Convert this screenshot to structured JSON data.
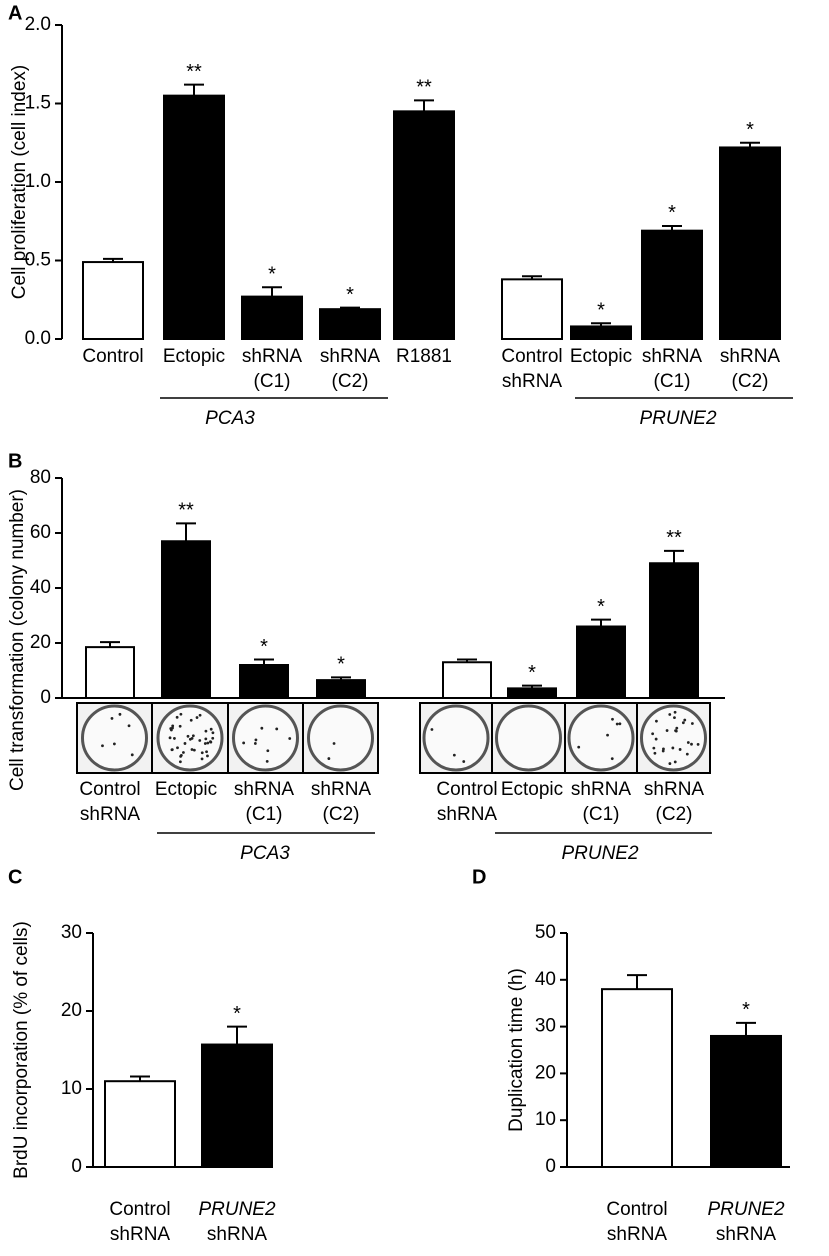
{
  "chart_data": [
    {
      "type": "bar",
      "panel": "A",
      "y_label": "Cell proliferation (cell index)",
      "categories": [
        [
          "Control"
        ],
        [
          "Ectopic"
        ],
        [
          "shRNA",
          "(C1)"
        ],
        [
          "shRNA",
          "(C2)"
        ],
        [
          "R1881"
        ],
        null,
        [
          "Control",
          "shRNA"
        ],
        [
          "Ectopic"
        ],
        [
          "shRNA",
          "(C1)"
        ],
        [
          "shRNA",
          "(C2)"
        ]
      ],
      "values": [
        0.49,
        1.55,
        0.27,
        0.19,
        1.45,
        null,
        0.38,
        0.08,
        0.69,
        1.22
      ],
      "errors": [
        0.02,
        0.07,
        0.06,
        0.01,
        0.07,
        null,
        0.02,
        0.02,
        0.03,
        0.03
      ],
      "colors": [
        "#ffffff",
        "#000000",
        "#000000",
        "#000000",
        "#000000",
        null,
        "#ffffff",
        "#000000",
        "#000000",
        "#000000"
      ],
      "annotations": [
        null,
        "**",
        "*",
        "*",
        "**",
        null,
        null,
        "*",
        "*",
        "*"
      ],
      "groups": [
        "PCA3",
        "PRUNE2"
      ],
      "ylim": [
        0,
        2
      ],
      "yticks": [
        {
          "value": 0,
          "label": "0.0"
        },
        0.5,
        {
          "value": 1,
          "label": "1.0"
        },
        1.5,
        {
          "value": 2,
          "label": "2.0"
        }
      ]
    },
    {
      "type": "bar",
      "panel": "B",
      "y_label": "Cell transformation (colony number)",
      "categories": [
        [
          "Control",
          "shRNA"
        ],
        [
          "Ectopic"
        ],
        [
          "shRNA",
          "(C1)"
        ],
        [
          "shRNA",
          "(C2)"
        ],
        null,
        [
          "Control",
          "shRNA"
        ],
        [
          "Ectopic"
        ],
        [
          "shRNA",
          "(C1)"
        ],
        [
          "shRNA",
          "(C2)"
        ]
      ],
      "values": [
        18.5,
        57,
        12,
        6.5,
        null,
        13,
        3.5,
        26,
        49
      ],
      "errors": [
        1.8,
        6.5,
        2,
        1,
        null,
        1,
        1,
        2.5,
        4.5
      ],
      "colors": [
        "#ffffff",
        "#000000",
        "#000000",
        "#000000",
        null,
        "#ffffff",
        "#000000",
        "#000000",
        "#000000"
      ],
      "annotations": [
        null,
        "**",
        "*",
        "*",
        null,
        null,
        "*",
        "*",
        "**"
      ],
      "groups": [
        "PCA3",
        "PRUNE2"
      ],
      "ylim": [
        0,
        80
      ],
      "yticks": [
        0,
        20,
        40,
        60,
        80
      ]
    },
    {
      "type": "bar",
      "panel": "C",
      "y_label": "BrdU incorporation (% of cells)",
      "categories": [
        [
          "Control",
          "shRNA"
        ],
        [
          "PRUNE2",
          "shRNA"
        ]
      ],
      "values": [
        11,
        15.7
      ],
      "errors": [
        0.6,
        2.3
      ],
      "colors": [
        "#ffffff",
        "#000000"
      ],
      "annotations": [
        null,
        "*"
      ],
      "ylim": [
        0,
        30
      ],
      "yticks": [
        0,
        10,
        20,
        30
      ]
    },
    {
      "type": "bar",
      "panel": "D",
      "y_label": "Duplication time (h)",
      "categories": [
        [
          "Control",
          "shRNA"
        ],
        [
          "PRUNE2",
          "shRNA"
        ]
      ],
      "values": [
        38,
        28
      ],
      "errors": [
        3,
        2.8
      ],
      "colors": [
        "#ffffff",
        "#000000"
      ],
      "annotations": [
        null,
        "*"
      ],
      "ylim": [
        0,
        50
      ],
      "yticks": [
        0,
        10,
        20,
        30,
        40,
        50
      ]
    }
  ]
}
